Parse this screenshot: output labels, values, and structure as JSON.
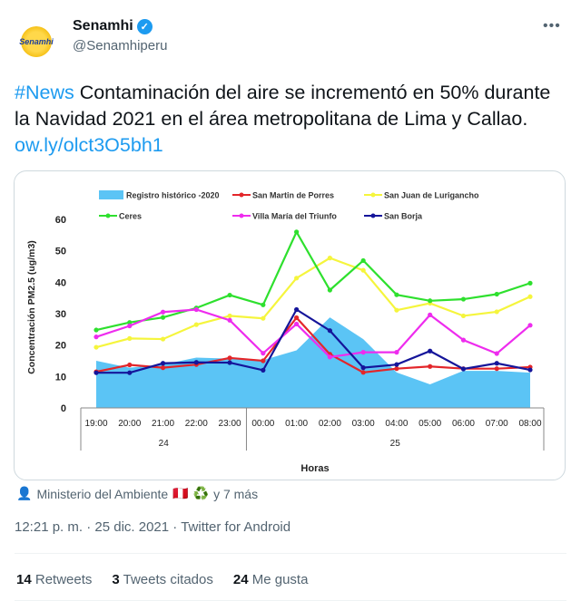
{
  "author": {
    "name": "Senamhi",
    "handle": "@Senamhiperu",
    "logo_text": "Senamhi",
    "verified": true,
    "more_icon": "ellipsis"
  },
  "tweet": {
    "hashtag": "#News",
    "text": " Contaminación del aire se incrementó en 50% durante la Navidad 2021 en el área metropolitana de Lima y Callao. ",
    "link": "ow.ly/olct3O5bh1"
  },
  "tagged": {
    "text": "Ministerio del Ambiente",
    "flag": "🇵🇪",
    "emoji": "♻️",
    "more": "y 7 más"
  },
  "meta": {
    "time": "12:21 p. m.",
    "sep": "·",
    "date": "25 dic. 2021",
    "source": "Twitter for Android"
  },
  "stats": {
    "retweets_count": "14",
    "retweets_label": "Retweets",
    "quotes_count": "3",
    "quotes_label": "Tweets citados",
    "likes_count": "24",
    "likes_label": "Me gusta"
  },
  "chart_data": {
    "type": "line",
    "xlabel": "Horas",
    "ylabel": "Concentración PM2.5 (ug/m3)",
    "ylim": [
      0,
      60
    ],
    "yticks": [
      "0",
      "10",
      "20",
      "30",
      "40",
      "50",
      "60"
    ],
    "categories": [
      "19:00",
      "20:00",
      "21:00",
      "22:00",
      "23:00",
      "00:00",
      "01:00",
      "02:00",
      "03:00",
      "04:00",
      "05:00",
      "06:00",
      "07:00",
      "08:00"
    ],
    "groups": [
      {
        "label": "24",
        "span": 5
      },
      {
        "label": "25",
        "span": 9
      }
    ],
    "legend": "top",
    "grid": false,
    "series": [
      {
        "name": "Registro histórico -2020",
        "kind": "area",
        "color": "#5bc4f5",
        "values": [
          15,
          12.8,
          13.8,
          16,
          15.7,
          15.2,
          18.3,
          28.8,
          21.9,
          11.3,
          7.5,
          11.8,
          11.8,
          11.2
        ]
      },
      {
        "name": "San Martin de Porres",
        "kind": "line",
        "color": "#e3262a",
        "values": [
          11.5,
          13.7,
          12.8,
          13.8,
          15.9,
          15,
          28.7,
          17.1,
          11.3,
          12.5,
          13.2,
          12.5,
          12.5,
          13
        ]
      },
      {
        "name": "San Juan de Lurigancho",
        "kind": "line",
        "color": "#f5f53c",
        "values": [
          19.3,
          22.1,
          21.9,
          26.5,
          29.3,
          28.5,
          41.3,
          47.7,
          43.8,
          31.1,
          33.3,
          29.3,
          30.6,
          35.4
        ]
      },
      {
        "name": "Ceres",
        "kind": "line",
        "color": "#2ee02e",
        "values": [
          24.8,
          27.2,
          28.8,
          31.8,
          35.9,
          32.8,
          56,
          37.5,
          46.9,
          36,
          34.1,
          34.6,
          36.2,
          39.7
        ]
      },
      {
        "name": "Villa María del Triunfo",
        "kind": "line",
        "color": "#ee2cee",
        "values": [
          22.6,
          26.1,
          30.5,
          31.3,
          27.9,
          17.4,
          26.7,
          16.2,
          17.7,
          17.7,
          29.6,
          21.6,
          17.3,
          26.3
        ]
      },
      {
        "name": "San Borja",
        "kind": "line",
        "color": "#15159a",
        "values": [
          11.2,
          11.2,
          14.2,
          14.5,
          14.4,
          12,
          31.3,
          24.6,
          12.8,
          13.8,
          18.1,
          12.4,
          14.2,
          12.1
        ]
      }
    ]
  }
}
